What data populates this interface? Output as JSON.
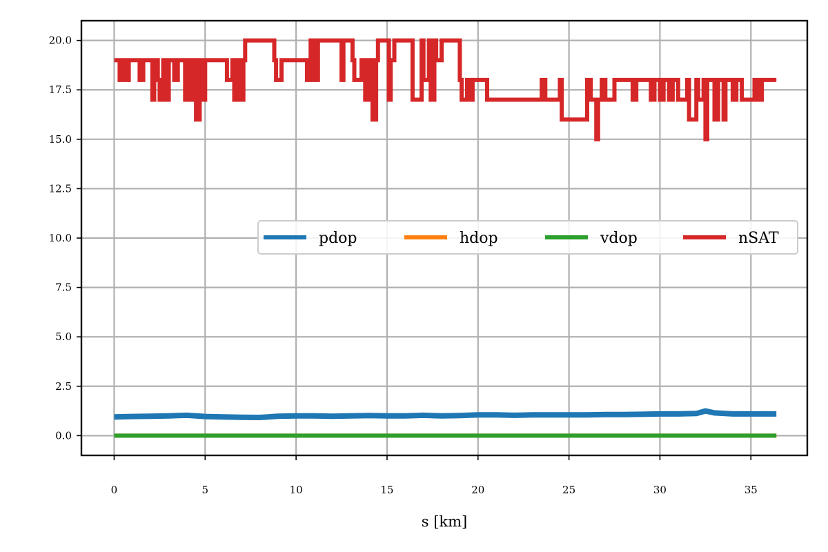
{
  "chart_data": {
    "type": "line",
    "xlabel": "s [km]",
    "ylabel": "",
    "xlim": [
      -1.8,
      38.1
    ],
    "ylim": [
      -1.0,
      21.0
    ],
    "xticks": [
      0,
      5,
      10,
      15,
      20,
      25,
      30,
      35
    ],
    "xtick_labels": [
      "0",
      "5",
      "10",
      "15",
      "20",
      "25",
      "30",
      "35"
    ],
    "yticks": [
      0.0,
      2.5,
      5.0,
      7.5,
      10.0,
      12.5,
      15.0,
      17.5,
      20.0
    ],
    "ytick_labels": [
      "0.0",
      "2.5",
      "5.0",
      "7.5",
      "10.0",
      "12.5",
      "15.0",
      "17.5",
      "20.0"
    ],
    "grid": true,
    "legend": {
      "placement": "center-right",
      "ncol": 4
    },
    "series": [
      {
        "name": "pdop",
        "color": "#1f77b4",
        "x": [
          0,
          1,
          2,
          3,
          4,
          5,
          6,
          7,
          8,
          9,
          10,
          11,
          12,
          13,
          14,
          15,
          16,
          17,
          18,
          19,
          20,
          21,
          22,
          23,
          24,
          25,
          26,
          27,
          28,
          29,
          30,
          31,
          32,
          32.5,
          33,
          34,
          35,
          36.4
        ],
        "y": [
          0.95,
          0.97,
          0.98,
          1.0,
          1.03,
          0.97,
          0.95,
          0.93,
          0.92,
          0.98,
          1.0,
          1.0,
          0.98,
          1.0,
          1.02,
          1.0,
          1.0,
          1.03,
          1.0,
          1.02,
          1.05,
          1.05,
          1.03,
          1.05,
          1.05,
          1.05,
          1.05,
          1.07,
          1.07,
          1.08,
          1.1,
          1.1,
          1.12,
          1.25,
          1.15,
          1.1,
          1.1,
          1.1
        ]
      },
      {
        "name": "hdop",
        "color": "#ff7f0e",
        "x": [
          0,
          36.4
        ],
        "y": [
          0.0,
          0.0
        ]
      },
      {
        "name": "vdop",
        "color": "#2ca02c",
        "x": [
          0,
          36.4
        ],
        "y": [
          0.0,
          0.0
        ]
      },
      {
        "name": "nSAT",
        "color": "#d62728",
        "x": [
          0,
          0.2,
          0.3,
          0.5,
          0.6,
          0.8,
          1.2,
          1.4,
          1.6,
          2.1,
          2.2,
          2.4,
          2.5,
          2.7,
          2.8,
          3.0,
          3.3,
          3.5,
          3.9,
          4.0,
          4.2,
          4.3,
          4.5,
          4.7,
          4.8,
          5.0,
          6.0,
          6.2,
          6.5,
          6.6,
          6.8,
          6.9,
          7.1,
          7.2,
          7.5,
          8.8,
          8.9,
          9.2,
          9.3,
          10.5,
          10.6,
          10.8,
          11.0,
          11.2,
          12.5,
          12.6,
          13.1,
          13.2,
          13.6,
          13.8,
          14.0,
          14.2,
          14.4,
          14.5,
          15.1,
          15.2,
          15.4,
          15.6,
          16.3,
          16.4,
          16.9,
          17.0,
          17.3,
          17.4,
          17.6,
          17.7,
          18.0,
          19.0,
          19.1,
          19.4,
          19.5,
          19.7,
          20.3,
          20.5,
          23.5,
          23.7,
          24.5,
          24.6,
          26.0,
          26.2,
          26.5,
          26.6,
          26.8,
          27.0,
          27.3,
          27.5,
          28.5,
          28.7,
          29.5,
          29.7,
          30.0,
          30.2,
          30.5,
          30.7,
          31.0,
          31.5,
          31.6,
          32.0,
          32.1,
          32.4,
          32.5,
          32.6,
          33.0,
          33.2,
          33.5,
          33.6,
          34.0,
          34.2,
          34.5,
          35.0,
          35.2,
          35.4,
          35.6,
          36.4
        ],
        "y": [
          19,
          19,
          18,
          19,
          18,
          19,
          19,
          18,
          19,
          17,
          19,
          18,
          17,
          19,
          17,
          19,
          18,
          19,
          17,
          19,
          17,
          19,
          16,
          19,
          17,
          19,
          19,
          18,
          19,
          17,
          19,
          17,
          19,
          20,
          20,
          19,
          18,
          19,
          19,
          19,
          18,
          20,
          18,
          20,
          18,
          20,
          19,
          18,
          19,
          17,
          19,
          16,
          19,
          20,
          17,
          19,
          20,
          20,
          20,
          17,
          20,
          18,
          20,
          17,
          20,
          19,
          20,
          18,
          17,
          18,
          17,
          18,
          18,
          17,
          18,
          17,
          18,
          16,
          18,
          17,
          15,
          17,
          18,
          17,
          17,
          18,
          17,
          18,
          17,
          18,
          17,
          18,
          17,
          18,
          17,
          18,
          16,
          18,
          17,
          18,
          15,
          18,
          16,
          18,
          16,
          18,
          17,
          18,
          17,
          17,
          18,
          17,
          18,
          18
        ]
      }
    ]
  }
}
